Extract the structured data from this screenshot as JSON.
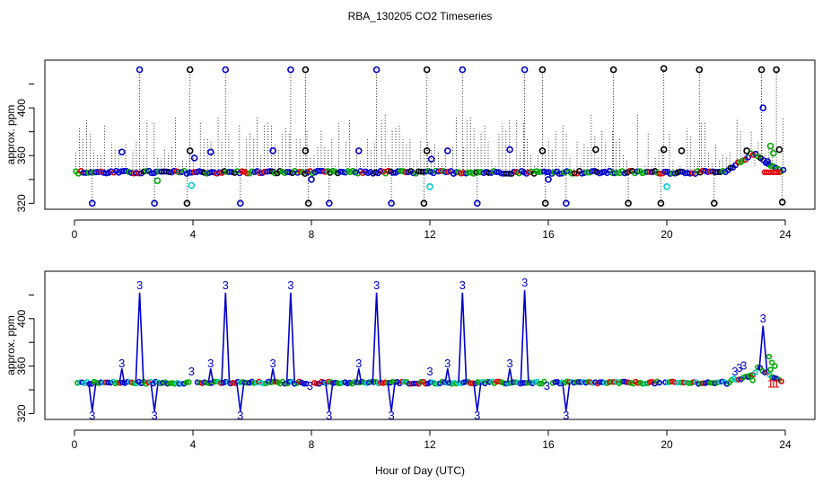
{
  "title": "RBA_130205  CO2 Timeseries",
  "xlabel": "Hour of Day (UTC)",
  "chart_data": [
    {
      "type": "scatter",
      "name": "top-panel",
      "ylabel": "approx. ppm",
      "xlim": [
        -1.0,
        25.0
      ],
      "ylim": [
        315,
        440
      ],
      "xticks": [
        0,
        4,
        8,
        12,
        16,
        20,
        24
      ],
      "yticks": [
        320,
        360,
        400
      ],
      "xtick_labels": [
        "0",
        "4",
        "8",
        "12",
        "16",
        "20",
        "24"
      ],
      "ytick_labels": [
        "320",
        "360",
        "400"
      ],
      "baseline": {
        "start": 346,
        "end": 346,
        "bump_start": 22.0,
        "bump_peak": 22.9,
        "bump_value": 366
      },
      "colors": {
        "black": "#000000",
        "blue": "#0000cc",
        "green": "#00aa00",
        "cyan": "#00cccc",
        "red": "#dd0000"
      },
      "high_points": [
        {
          "x": 2.2,
          "y": 432,
          "color": "blue"
        },
        {
          "x": 3.9,
          "y": 432,
          "color": "black"
        },
        {
          "x": 5.1,
          "y": 432,
          "color": "blue"
        },
        {
          "x": 7.3,
          "y": 432,
          "color": "blue"
        },
        {
          "x": 7.8,
          "y": 432,
          "color": "black"
        },
        {
          "x": 10.2,
          "y": 432,
          "color": "blue"
        },
        {
          "x": 11.9,
          "y": 432,
          "color": "black"
        },
        {
          "x": 13.1,
          "y": 432,
          "color": "blue"
        },
        {
          "x": 15.2,
          "y": 432,
          "color": "blue"
        },
        {
          "x": 15.8,
          "y": 432,
          "color": "black"
        },
        {
          "x": 18.2,
          "y": 432,
          "color": "black"
        },
        {
          "x": 19.9,
          "y": 433,
          "color": "black"
        },
        {
          "x": 21.1,
          "y": 432,
          "color": "black"
        },
        {
          "x": 23.2,
          "y": 432,
          "color": "black"
        },
        {
          "x": 23.7,
          "y": 432,
          "color": "black"
        },
        {
          "x": 23.25,
          "y": 400,
          "color": "blue"
        }
      ],
      "low_points": [
        {
          "x": 0.6,
          "y": 320,
          "color": "blue"
        },
        {
          "x": 2.7,
          "y": 320,
          "color": "blue"
        },
        {
          "x": 3.8,
          "y": 320,
          "color": "black"
        },
        {
          "x": 5.6,
          "y": 320,
          "color": "blue"
        },
        {
          "x": 7.9,
          "y": 320,
          "color": "black"
        },
        {
          "x": 8.6,
          "y": 320,
          "color": "blue"
        },
        {
          "x": 10.7,
          "y": 320,
          "color": "blue"
        },
        {
          "x": 11.8,
          "y": 320,
          "color": "black"
        },
        {
          "x": 13.6,
          "y": 320,
          "color": "blue"
        },
        {
          "x": 15.9,
          "y": 320,
          "color": "black"
        },
        {
          "x": 16.6,
          "y": 320,
          "color": "blue"
        },
        {
          "x": 18.7,
          "y": 320,
          "color": "black"
        },
        {
          "x": 19.8,
          "y": 320,
          "color": "black"
        },
        {
          "x": 21.6,
          "y": 320,
          "color": "black"
        },
        {
          "x": 23.9,
          "y": 321,
          "color": "black"
        }
      ],
      "mid_points": [
        {
          "x": 1.6,
          "y": 363,
          "color": "blue"
        },
        {
          "x": 3.9,
          "y": 364,
          "color": "black"
        },
        {
          "x": 4.05,
          "y": 358,
          "color": "blue"
        },
        {
          "x": 3.95,
          "y": 335,
          "color": "cyan"
        },
        {
          "x": 2.8,
          "y": 339,
          "color": "green"
        },
        {
          "x": 4.6,
          "y": 363,
          "color": "blue"
        },
        {
          "x": 6.7,
          "y": 364,
          "color": "blue"
        },
        {
          "x": 7.8,
          "y": 364,
          "color": "black"
        },
        {
          "x": 8.0,
          "y": 340,
          "color": "blue"
        },
        {
          "x": 9.6,
          "y": 364,
          "color": "blue"
        },
        {
          "x": 11.9,
          "y": 364,
          "color": "black"
        },
        {
          "x": 12.05,
          "y": 357,
          "color": "blue"
        },
        {
          "x": 12.0,
          "y": 334,
          "color": "cyan"
        },
        {
          "x": 12.6,
          "y": 364,
          "color": "blue"
        },
        {
          "x": 14.7,
          "y": 365,
          "color": "blue"
        },
        {
          "x": 15.8,
          "y": 364,
          "color": "black"
        },
        {
          "x": 16.0,
          "y": 340,
          "color": "blue"
        },
        {
          "x": 17.6,
          "y": 365,
          "color": "black"
        },
        {
          "x": 19.9,
          "y": 365,
          "color": "black"
        },
        {
          "x": 20.0,
          "y": 334,
          "color": "cyan"
        },
        {
          "x": 20.5,
          "y": 364,
          "color": "black"
        },
        {
          "x": 22.7,
          "y": 364,
          "color": "black"
        },
        {
          "x": 23.8,
          "y": 365,
          "color": "black"
        },
        {
          "x": 23.4,
          "y": 355,
          "color": "blue"
        },
        {
          "x": 23.5,
          "y": 368,
          "color": "green"
        },
        {
          "x": 23.6,
          "y": 362,
          "color": "green"
        }
      ]
    },
    {
      "type": "line",
      "name": "bottom-panel",
      "ylabel": "approx. ppm",
      "xlim": [
        -1.0,
        25.0
      ],
      "ylim": [
        315,
        440
      ],
      "xticks": [
        0,
        4,
        8,
        12,
        16,
        20,
        24
      ],
      "yticks": [
        320,
        360,
        400
      ],
      "xtick_labels": [
        "0",
        "4",
        "8",
        "12",
        "16",
        "20",
        "24"
      ],
      "ytick_labels": [
        "320",
        "360",
        "400"
      ],
      "line_color": "#0000cc",
      "label_marker": "3",
      "red_marker": "1",
      "segments": [
        [
          0.1,
          3.9
        ],
        [
          4.15,
          7.9
        ],
        [
          8.1,
          15.9
        ],
        [
          16.15,
          19.75
        ],
        [
          19.95,
          23.9
        ]
      ],
      "spikes_up": [
        {
          "x": 2.2,
          "y": 422
        },
        {
          "x": 5.1,
          "y": 422
        },
        {
          "x": 7.3,
          "y": 422
        },
        {
          "x": 10.2,
          "y": 422
        },
        {
          "x": 13.1,
          "y": 422
        },
        {
          "x": 15.2,
          "y": 424
        },
        {
          "x": 23.25,
          "y": 394
        }
      ],
      "spikes_small": [
        {
          "x": 1.6,
          "y": 358
        },
        {
          "x": 4.6,
          "y": 358
        },
        {
          "x": 6.7,
          "y": 358
        },
        {
          "x": 9.6,
          "y": 358
        },
        {
          "x": 12.6,
          "y": 358
        },
        {
          "x": 14.7,
          "y": 358
        }
      ],
      "spikes_down": [
        {
          "x": 0.6,
          "y": 322
        },
        {
          "x": 2.7,
          "y": 322
        },
        {
          "x": 5.6,
          "y": 322
        },
        {
          "x": 8.6,
          "y": 322
        },
        {
          "x": 10.7,
          "y": 322
        },
        {
          "x": 13.6,
          "y": 322
        },
        {
          "x": 16.6,
          "y": 322
        }
      ],
      "edge_labels": [
        {
          "x": 3.95,
          "y": 352
        },
        {
          "x": 7.95,
          "y": 340
        },
        {
          "x": 12.0,
          "y": 352
        },
        {
          "x": 15.95,
          "y": 340
        }
      ]
    }
  ]
}
